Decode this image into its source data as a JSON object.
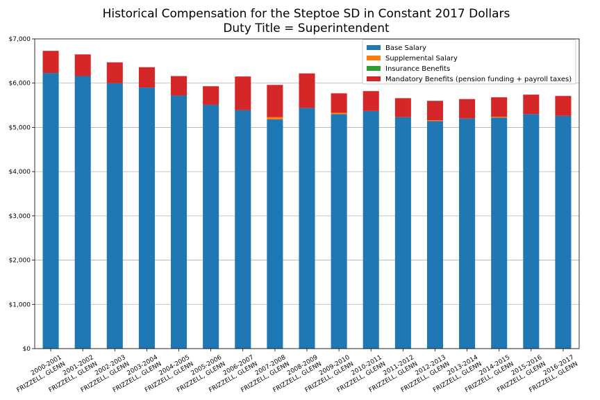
{
  "chart_data": {
    "type": "bar",
    "stacked": true,
    "title": "Historical Compensation for the Steptoe SD in Constant 2017 Dollars",
    "subtitle": "Duty Title = Superintendent",
    "categories": [
      "2000-2001\nFRIZZELL, GLENN",
      "2001-2002\nFRIZZELL, GLENN",
      "2002-2003\nFRIZZELL, GLENN",
      "2003-2004\nFRIZZELL, GLENN",
      "2004-2005\nFRIZZELL, GLENN",
      "2005-2006\nFRIZZELL, GLENN",
      "2006-2007\nFRIZZELL, GLENN",
      "2007-2008\nFRIZZELL, GLENN",
      "2008-2009\nFRIZZELL, GLENN",
      "2009-2010\nFRIZZELL, GLENN",
      "2010-2011\nFRIZZELL, GLENN",
      "2011-2012\nFRIZZELL, GLENN",
      "2012-2013\nFRIZZELL, GLENN",
      "2013-2014\nFRIZZELL, GLENN",
      "2014-2015\nFRIZZELL, GLENN",
      "2015-2016\nFRIZZELL, GLENN",
      "2016-2017\nFRIZZELL, GLENN"
    ],
    "series": [
      {
        "name": "Base Salary",
        "color": "#1f77b4",
        "values": [
          6230,
          6160,
          6000,
          5900,
          5720,
          5510,
          5390,
          5180,
          5440,
          5300,
          5370,
          5230,
          5140,
          5200,
          5220,
          5300,
          5260
        ]
      },
      {
        "name": "Supplemental Salary",
        "color": "#ff7f0e",
        "values": [
          0,
          0,
          0,
          0,
          0,
          0,
          0,
          50,
          0,
          30,
          0,
          0,
          20,
          0,
          20,
          0,
          0
        ]
      },
      {
        "name": "Insurance Benefits",
        "color": "#2ca02c",
        "values": [
          0,
          0,
          0,
          0,
          0,
          0,
          0,
          0,
          0,
          0,
          0,
          0,
          0,
          0,
          0,
          0,
          0
        ]
      },
      {
        "name": "Mandatory Benefits (pension funding + payroll taxes)",
        "color": "#d62728",
        "values": [
          500,
          490,
          470,
          460,
          440,
          420,
          760,
          730,
          780,
          440,
          450,
          430,
          440,
          440,
          440,
          440,
          450
        ]
      }
    ],
    "ylim": [
      0,
      7000
    ],
    "yticks": [
      0,
      1000,
      2000,
      3000,
      4000,
      5000,
      6000,
      7000
    ],
    "ytick_labels": [
      "$0",
      "$1,000",
      "$2,000",
      "$3,000",
      "$4,000",
      "$5,000",
      "$6,000",
      "$7,000"
    ],
    "grid": "horizontal",
    "legend_position": "top-right"
  }
}
